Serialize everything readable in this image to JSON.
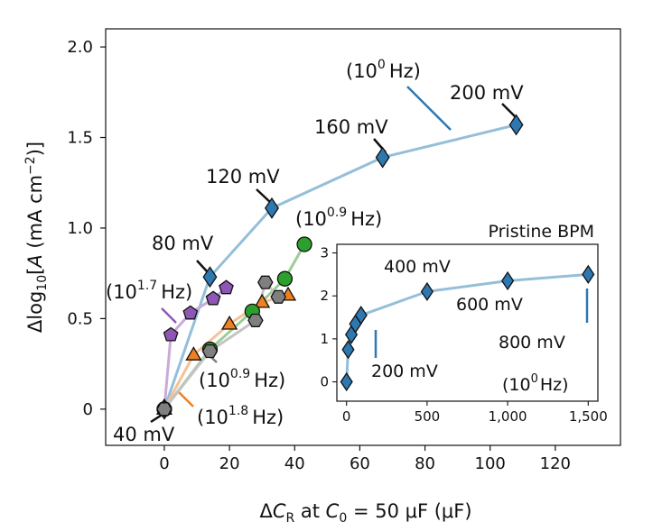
{
  "chart_data": [
    {
      "type": "scatter",
      "role": "main",
      "xlabel": "ΔC_R at C_0 = 50 μF (μF)",
      "ylabel": "Δlog10[A (mA cm^-2)]",
      "xlim": [
        -18,
        140
      ],
      "ylim": [
        -0.2,
        2.1
      ],
      "xticks": [
        0,
        20,
        40,
        60,
        80,
        100,
        120
      ],
      "yticks": [
        0,
        0.5,
        1.0,
        1.5,
        2.0
      ],
      "ytick_labels": [
        "0",
        "0.5",
        "1.0",
        "1.5",
        "2.0"
      ],
      "series": [
        {
          "name": "blue",
          "marker": "diamond",
          "color": "#2e78b0",
          "line": "#95bfd9",
          "x": [
            0,
            14,
            33,
            67,
            108
          ],
          "y": [
            0,
            0.73,
            1.11,
            1.39,
            1.57
          ]
        },
        {
          "name": "purple",
          "marker": "pentagon",
          "color": "#8f57b5",
          "line": "#c9abd9",
          "x": [
            0,
            2,
            8,
            15,
            19
          ],
          "y": [
            0,
            0.41,
            0.53,
            0.61,
            0.67
          ]
        },
        {
          "name": "orange",
          "marker": "triangle",
          "color": "#f0801f",
          "line": "#f5c298",
          "x": [
            0,
            9,
            20,
            30,
            38
          ],
          "y": [
            0,
            0.3,
            0.47,
            0.59,
            0.63
          ]
        },
        {
          "name": "green",
          "marker": "circle",
          "color": "#2ca02c",
          "line": "#9ccc97",
          "x": [
            0,
            14,
            27,
            37,
            43
          ],
          "y": [
            0,
            0.33,
            0.54,
            0.72,
            0.91
          ]
        },
        {
          "name": "gray",
          "marker": "hexagon",
          "color": "#7f7f7f",
          "line": "#c4c4c4",
          "x": [
            0,
            14,
            28,
            31,
            35
          ],
          "y": [
            0,
            0.32,
            0.49,
            0.7,
            0.62
          ]
        }
      ],
      "annotations": {
        "mv_40": "40 mV",
        "mv_80": "80 mV",
        "mv_120": "120 mV",
        "mv_160": "160 mV",
        "mv_200": "200 mV",
        "blue_freq_base": "(10",
        "blue_freq_exp": "0",
        "blue_freq_unit": "Hz)",
        "green_freq_base": "(10",
        "green_freq_exp": "0.9",
        "green_freq_unit": "Hz)",
        "purple_freq_base": "(10",
        "purple_freq_exp": "1.7",
        "purple_freq_unit": "Hz)",
        "gray_freq_base": "(10",
        "gray_freq_exp": "0.9",
        "gray_freq_unit": "Hz)",
        "orange_freq_base": "(10",
        "orange_freq_exp": "1.8",
        "orange_freq_unit": "Hz)"
      }
    },
    {
      "type": "line",
      "role": "inset",
      "title": "Pristine BPM",
      "xlim": [
        -60,
        1560
      ],
      "ylim": [
        -0.45,
        3.2
      ],
      "xticks": [
        0,
        500,
        1000,
        1500
      ],
      "xtick_labels": [
        "0",
        "500",
        "1,000",
        "1,500"
      ],
      "yticks": [
        0,
        1,
        2,
        3
      ],
      "series": [
        {
          "name": "pristine",
          "marker": "diamond",
          "color": "#2e78b0",
          "line": "#95bfd9",
          "x": [
            0,
            10,
            30,
            55,
            90,
            500,
            1000,
            1500
          ],
          "y": [
            0,
            0.75,
            1.1,
            1.35,
            1.55,
            2.1,
            2.35,
            2.5
          ]
        }
      ],
      "annotations": {
        "mv_200": "200 mV",
        "mv_400": "400 mV",
        "mv_600": "600 mV",
        "mv_800": "800 mV",
        "freq_base": "(10",
        "freq_exp": "0",
        "freq_unit": "Hz)"
      }
    }
  ]
}
